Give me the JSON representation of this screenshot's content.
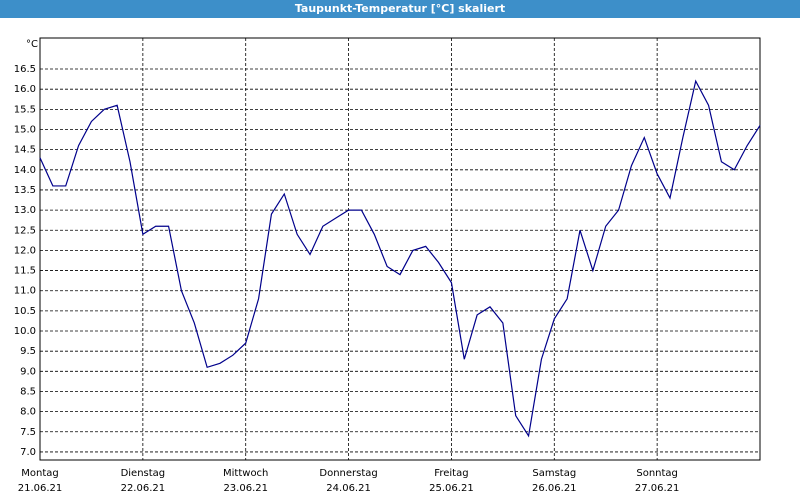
{
  "chart_data": {
    "type": "line",
    "title": "Taupunkt-Temperatur [°C] skaliert",
    "y_unit": "°C",
    "categories": [
      "Montag",
      null,
      null,
      null,
      null,
      null,
      null,
      null,
      "Dienstag",
      null,
      null,
      null,
      null,
      null,
      null,
      null,
      "Mittwoch",
      null,
      null,
      null,
      null,
      null,
      null,
      null,
      "Donnerstag",
      null,
      null,
      null,
      null,
      null,
      null,
      null,
      "Freitag",
      null,
      null,
      null,
      null,
      null,
      null,
      null,
      "Samstag",
      null,
      null,
      null,
      null,
      null,
      null,
      null,
      "Sonntag",
      null,
      null,
      null,
      null,
      null,
      null,
      null,
      null
    ],
    "category_dates": [
      "21.06.21",
      null,
      null,
      null,
      null,
      null,
      null,
      null,
      "22.06.21",
      null,
      null,
      null,
      null,
      null,
      null,
      null,
      "23.06.21",
      null,
      null,
      null,
      null,
      null,
      null,
      null,
      "24.06.21",
      null,
      null,
      null,
      null,
      null,
      null,
      null,
      "25.06.21",
      null,
      null,
      null,
      null,
      null,
      null,
      null,
      "26.06.21",
      null,
      null,
      null,
      null,
      null,
      null,
      null,
      "27.06.21",
      null,
      null,
      null,
      null,
      null,
      null,
      null,
      null
    ],
    "series": [
      {
        "name": "Taupunkt",
        "color": "#00008b",
        "values": [
          14.3,
          13.6,
          13.6,
          14.6,
          15.2,
          15.5,
          15.6,
          14.2,
          12.4,
          12.6,
          12.6,
          11.0,
          10.2,
          9.1,
          9.2,
          9.4,
          9.7,
          10.8,
          12.9,
          13.4,
          12.4,
          11.9,
          12.6,
          12.8,
          13.0,
          13.0,
          12.4,
          11.6,
          11.4,
          12.0,
          12.1,
          11.7,
          11.2,
          9.3,
          10.4,
          10.6,
          10.2,
          7.9,
          7.4,
          9.3,
          10.3,
          10.8,
          12.5,
          11.5,
          12.6,
          13.0,
          14.1,
          14.8,
          13.9,
          13.3,
          14.8,
          16.2,
          15.6,
          14.2,
          14.0,
          14.6,
          15.1
        ]
      }
    ],
    "ylim": [
      6.8,
      17.27
    ],
    "yticks": [
      {
        "value": 7,
        "label": "7.0"
      },
      7.5,
      {
        "value": 8,
        "label": "8.0"
      },
      8.5,
      {
        "value": 9,
        "label": "9.0"
      },
      9.5,
      {
        "value": 10,
        "label": "10.0"
      },
      10.5,
      {
        "value": 11,
        "label": "11.0"
      },
      11.5,
      {
        "value": 12,
        "label": "12.0"
      },
      12.5,
      {
        "value": 13,
        "label": "13.0"
      },
      13.5,
      {
        "value": 14,
        "label": "14.0"
      },
      14.5,
      {
        "value": 15,
        "label": "15.0"
      },
      15.5,
      {
        "value": 16,
        "label": "16.0"
      },
      16.5
    ],
    "grid": true
  }
}
